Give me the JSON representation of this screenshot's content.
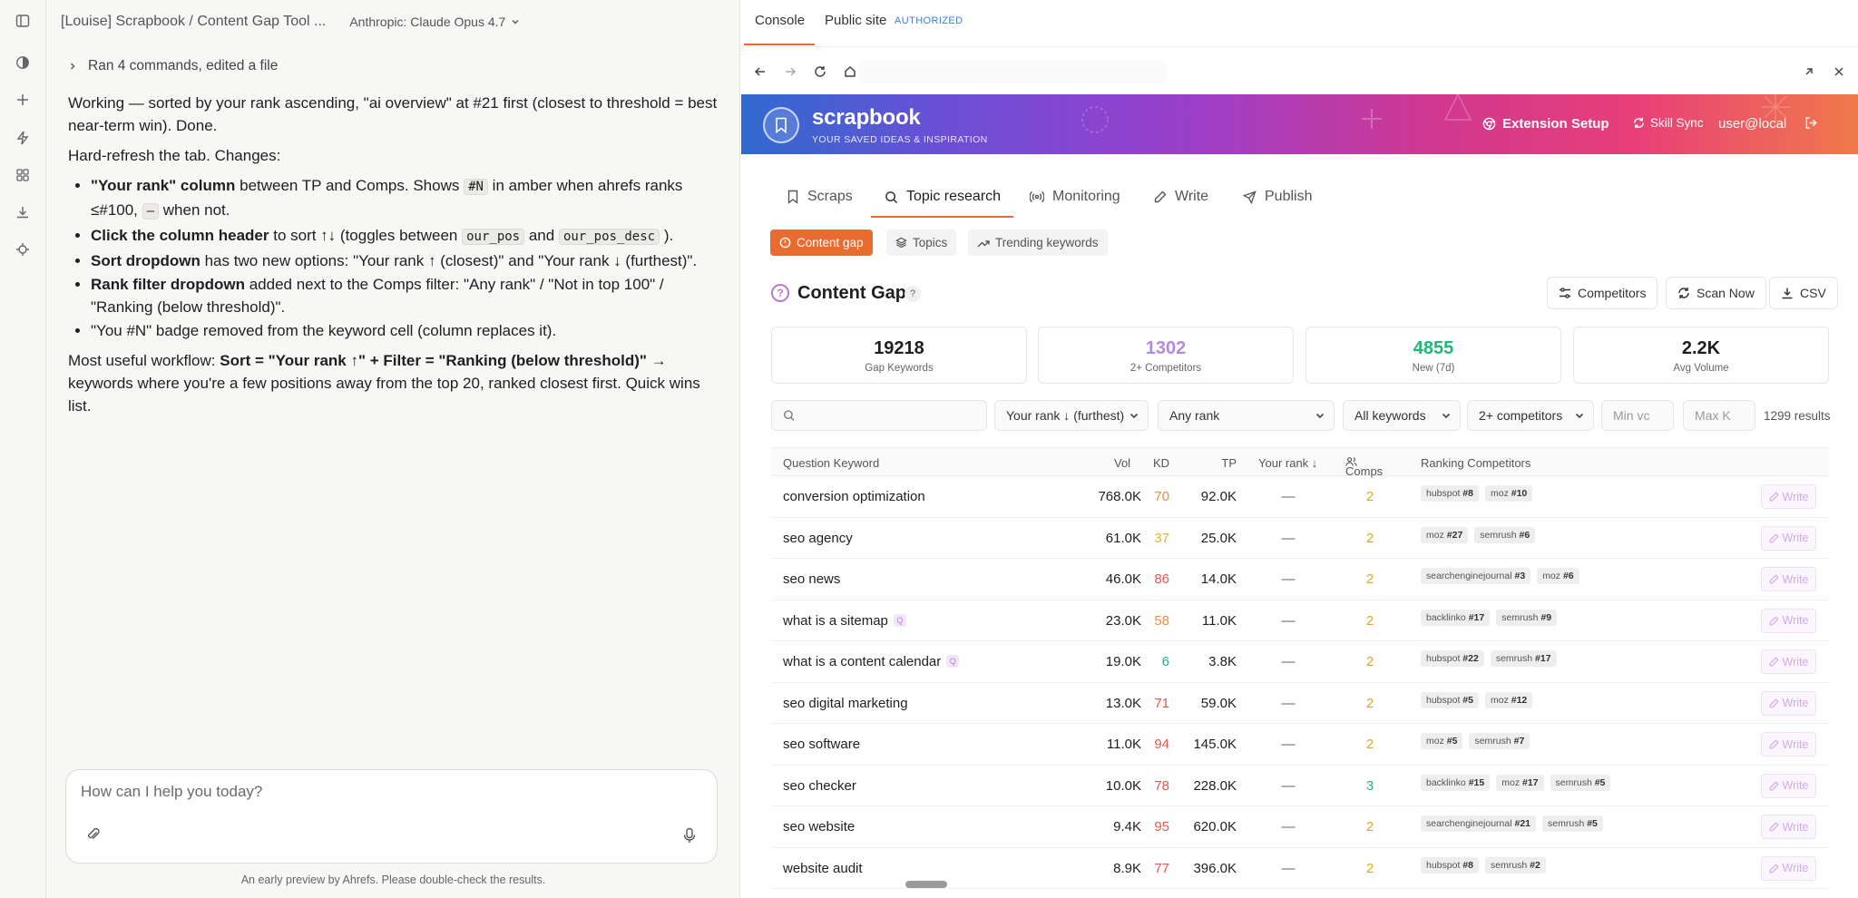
{
  "chat": {
    "title": "[Louise] Scrapbook / Content Gap Tool ...",
    "model": "Anthropic: Claude Opus 4.7",
    "activity": "Ran 4 commands, edited a file",
    "p1": "Working — sorted by your rank ascending, \"ai overview\" at #21 first (closest to threshold = best near-term win). Done.",
    "p2": "Hard-refresh the tab. Changes:",
    "bullets": {
      "b1_bold": "\"Your rank\" column",
      "b1_a": " between TP and Comps. Shows ",
      "b1_code": "#N",
      "b1_b": " in amber when ahrefs ranks ≤#100, ",
      "b1_code2": "—",
      "b1_c": " when not.",
      "b2_bold": "Click the column header",
      "b2_a": " to sort ↑↓ (toggles between ",
      "b2_code1": "our_pos",
      "b2_b": " and ",
      "b2_code2": "our_pos_desc",
      "b2_c": " ).",
      "b3_bold": "Sort dropdown",
      "b3_a": " has two new options: \"Your rank ↑ (closest)\" and \"Your rank ↓ (furthest)\".",
      "b4_bold": "Rank filter dropdown",
      "b4_a": " added next to the Comps filter: \"Any rank\" / \"Not in top 100\" / \"Ranking (below threshold)\".",
      "b5": "\"You #N\" badge removed from the keyword cell (column replaces it)."
    },
    "p3_a": "Most useful workflow: ",
    "p3_bold": "Sort = \"Your rank ↑\" + Filter = \"Ranking (below threshold)\"",
    "p3_b": " → keywords where you're a few positions away from the top 20, ranked closest first. Quick wins list.",
    "composer_placeholder": "How can I help you today?",
    "disclaimer": "An early preview by Ahrefs. Please double-check the results."
  },
  "browser": {
    "tab_console": "Console",
    "tab_public": "Public site",
    "tab_badge": "AUTHORIZED"
  },
  "site": {
    "brand": "scrapbook",
    "tagline": "YOUR SAVED IDEAS & INSPIRATION",
    "extension_setup": "Extension Setup",
    "skill_sync": "Skill Sync",
    "user": "user@local",
    "nav": [
      "Scraps",
      "Topic research",
      "Monitoring",
      "Write",
      "Publish"
    ],
    "subtabs": [
      "Content gap",
      "Topics",
      "Trending keywords"
    ],
    "page_title": "Content Gap",
    "help_glyph": "?",
    "actions": [
      "Competitors",
      "Scan Now",
      "CSV"
    ],
    "stats": [
      {
        "value": "19218",
        "label": "Gap Keywords",
        "color": "#1f1f1f"
      },
      {
        "value": "1302",
        "label": "2+ Competitors",
        "color": "#b48ae0"
      },
      {
        "value": "4855",
        "label": "New (7d)",
        "color": "#23b57a"
      },
      {
        "value": "2.2K",
        "label": "Avg Volume",
        "color": "#1f1f1f"
      }
    ],
    "filters": {
      "search_placeholder": "",
      "sort": "Your rank ↓ (furthest)",
      "rank": "Any rank",
      "keywords": "All keywords",
      "comps": "2+ competitors",
      "min_vol_placeholder": "Min vc",
      "max_k_placeholder": "Max K",
      "results": "1299 results"
    },
    "columns": {
      "keyword": "Question Keyword",
      "vol": "Vol",
      "kd": "KD",
      "tp": "TP",
      "rank": "Your rank ↓",
      "comps": "Comps",
      "ranking": "Ranking Competitors"
    },
    "write_label": "Write",
    "rows": [
      {
        "kw": "conversion optimization",
        "q": false,
        "vol": "768.0K",
        "kd": "70",
        "kd_color": "#f08c3a",
        "tp": "92.0K",
        "rank": "—",
        "comps": "2",
        "comps_color": "#e0a820",
        "chips": [
          {
            "n": "hubspot",
            "r": "#8"
          },
          {
            "n": "moz",
            "r": "#10"
          }
        ]
      },
      {
        "kw": "seo agency",
        "q": false,
        "vol": "61.0K",
        "kd": "37",
        "kd_color": "#e8b030",
        "tp": "25.0K",
        "rank": "—",
        "comps": "2",
        "comps_color": "#e0a820",
        "chips": [
          {
            "n": "moz",
            "r": "#27"
          },
          {
            "n": "semrush",
            "r": "#6"
          }
        ]
      },
      {
        "kw": "seo news",
        "q": false,
        "vol": "46.0K",
        "kd": "86",
        "kd_color": "#e9574a",
        "tp": "14.0K",
        "rank": "—",
        "comps": "2",
        "comps_color": "#e0a820",
        "chips": [
          {
            "n": "searchenginejournal",
            "r": "#3"
          },
          {
            "n": "moz",
            "r": "#6"
          }
        ]
      },
      {
        "kw": "what is a sitemap",
        "q": true,
        "vol": "23.0K",
        "kd": "58",
        "kd_color": "#f08c3a",
        "tp": "11.0K",
        "rank": "—",
        "comps": "2",
        "comps_color": "#e0a820",
        "chips": [
          {
            "n": "backlinko",
            "r": "#17"
          },
          {
            "n": "semrush",
            "r": "#9"
          }
        ]
      },
      {
        "kw": "what is a content calendar",
        "q": true,
        "vol": "19.0K",
        "kd": "6",
        "kd_color": "#23b57a",
        "tp": "3.8K",
        "rank": "—",
        "comps": "2",
        "comps_color": "#e0a820",
        "chips": [
          {
            "n": "hubspot",
            "r": "#22"
          },
          {
            "n": "semrush",
            "r": "#17"
          }
        ]
      },
      {
        "kw": "seo digital marketing",
        "q": false,
        "vol": "13.0K",
        "kd": "71",
        "kd_color": "#e9574a",
        "tp": "59.0K",
        "rank": "—",
        "comps": "2",
        "comps_color": "#e0a820",
        "chips": [
          {
            "n": "hubspot",
            "r": "#5"
          },
          {
            "n": "moz",
            "r": "#12"
          }
        ]
      },
      {
        "kw": "seo software",
        "q": false,
        "vol": "11.0K",
        "kd": "94",
        "kd_color": "#e9574a",
        "tp": "145.0K",
        "rank": "—",
        "comps": "2",
        "comps_color": "#e0a820",
        "chips": [
          {
            "n": "moz",
            "r": "#5"
          },
          {
            "n": "semrush",
            "r": "#7"
          }
        ]
      },
      {
        "kw": "seo checker",
        "q": false,
        "vol": "10.0K",
        "kd": "78",
        "kd_color": "#e9574a",
        "tp": "228.0K",
        "rank": "—",
        "comps": "3",
        "comps_color": "#23b57a",
        "chips": [
          {
            "n": "backlinko",
            "r": "#15"
          },
          {
            "n": "moz",
            "r": "#17"
          },
          {
            "n": "semrush",
            "r": "#5"
          }
        ]
      },
      {
        "kw": "seo website",
        "q": false,
        "vol": "9.4K",
        "kd": "95",
        "kd_color": "#e9574a",
        "tp": "620.0K",
        "rank": "—",
        "comps": "2",
        "comps_color": "#e0a820",
        "chips": [
          {
            "n": "searchenginejournal",
            "r": "#21"
          },
          {
            "n": "semrush",
            "r": "#5"
          }
        ]
      },
      {
        "kw": "website audit",
        "q": false,
        "vol": "8.9K",
        "kd": "77",
        "kd_color": "#e9574a",
        "tp": "396.0K",
        "rank": "—",
        "comps": "2",
        "comps_color": "#e0a820",
        "chips": [
          {
            "n": "hubspot",
            "r": "#8"
          },
          {
            "n": "semrush",
            "r": "#2"
          }
        ]
      }
    ],
    "q_glyph": "Q"
  }
}
